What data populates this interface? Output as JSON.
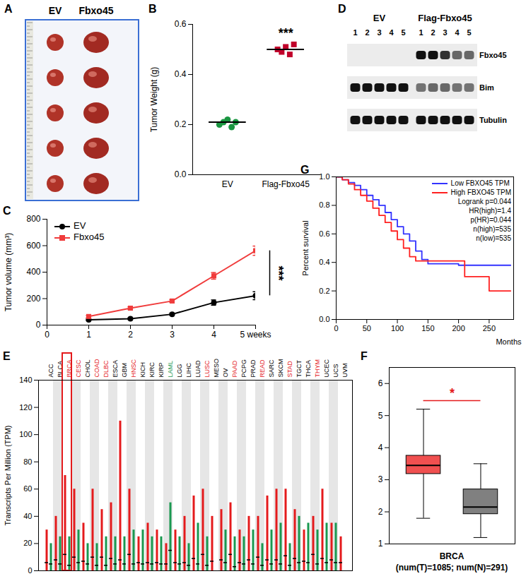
{
  "chart_data": [
    {
      "panel": "A",
      "type": "image",
      "labels": [
        "EV",
        "Fbxo45"
      ]
    },
    {
      "panel": "B",
      "type": "strip",
      "y_label": "Tumor Weight (g)",
      "ylim": [
        0,
        0.6
      ],
      "yticks": [
        {
          "value": 0,
          "label": "0.0"
        },
        0.2,
        0.4,
        0.6
      ],
      "series": [
        {
          "name": "EV",
          "color": "#1a9641",
          "marker": "circle",
          "values": [
            0.2,
            0.21,
            0.22,
            0.19,
            0.21
          ],
          "mean": 0.21
        },
        {
          "name": "Flag-Fbxo45",
          "color": "#c0002a",
          "marker": "square",
          "values": [
            0.5,
            0.49,
            0.51,
            0.48,
            0.52
          ],
          "mean": 0.5
        }
      ],
      "annotation": "***"
    },
    {
      "panel": "D",
      "type": "blot",
      "groups": [
        {
          "name": "EV",
          "lanes": [
            "1",
            "2",
            "3",
            "4",
            "5"
          ]
        },
        {
          "name": "Flag-Fbxo45",
          "lanes": [
            "1",
            "2",
            "3",
            "4",
            "5"
          ]
        }
      ],
      "rows": [
        {
          "name": "Fbxo45",
          "intensity": [
            0,
            0,
            0,
            0,
            0,
            1,
            1,
            0.85,
            0.6,
            0.6
          ]
        },
        {
          "name": "Bim",
          "intensity": [
            1,
            1,
            1,
            1,
            1,
            0.55,
            0.6,
            0.6,
            0.55,
            0.55
          ]
        },
        {
          "name": "Tubulin",
          "intensity": [
            1,
            1,
            1,
            1,
            1,
            1,
            1,
            1,
            1,
            1
          ]
        }
      ]
    },
    {
      "panel": "C",
      "type": "line",
      "y_label": "Tumor volume (mm³)",
      "x": [
        1,
        2,
        3,
        4,
        5
      ],
      "xlim": [
        0,
        5
      ],
      "xticks": [
        0,
        1,
        2,
        3,
        4,
        {
          "value": 5,
          "label": "5 weeks"
        }
      ],
      "ylim": [
        0,
        800
      ],
      "yticks": [
        0,
        200,
        400,
        600,
        800
      ],
      "series": [
        {
          "name": "EV",
          "color": "#000000",
          "marker": "circle",
          "values": [
            40,
            48,
            82,
            170,
            222
          ],
          "errors": [
            6,
            6,
            8,
            20,
            30
          ]
        },
        {
          "name": "Fbxo45",
          "color": "#f03c3c",
          "marker": "square",
          "values": [
            65,
            128,
            182,
            372,
            562
          ],
          "errors": [
            8,
            10,
            10,
            25,
            35
          ]
        }
      ],
      "legend": "top-left",
      "annotation": "***"
    },
    {
      "panel": "G",
      "type": "survival",
      "x_label": "Months",
      "y_label": "Percent survival",
      "xlim": [
        0,
        290
      ],
      "xticks": [
        0,
        50,
        100,
        150,
        200,
        250
      ],
      "ylim": [
        0,
        1
      ],
      "yticks": [
        {
          "value": 0,
          "label": "0.0"
        },
        0.2,
        0.4,
        0.6,
        0.8,
        {
          "value": 1,
          "label": "1.0"
        }
      ],
      "series": [
        {
          "name": "Low FBXO45 TPM",
          "color": "#3333ff",
          "x": [
            0,
            10,
            20,
            30,
            40,
            50,
            60,
            70,
            80,
            90,
            100,
            110,
            120,
            130,
            140,
            150,
            200,
            285
          ],
          "values": [
            1,
            0.98,
            0.96,
            0.94,
            0.91,
            0.87,
            0.84,
            0.8,
            0.75,
            0.7,
            0.65,
            0.6,
            0.55,
            0.48,
            0.42,
            0.39,
            0.38,
            0.38
          ]
        },
        {
          "name": "High FBXO45 TPM",
          "color": "#ff2020",
          "x": [
            0,
            10,
            20,
            30,
            40,
            50,
            60,
            70,
            80,
            90,
            100,
            110,
            120,
            130,
            210,
            250,
            285
          ],
          "values": [
            1,
            0.98,
            0.95,
            0.91,
            0.87,
            0.83,
            0.78,
            0.73,
            0.68,
            0.62,
            0.56,
            0.5,
            0.44,
            0.41,
            0.3,
            0.2,
            0.2
          ]
        }
      ],
      "annotations": [
        "Logrank p=0.044",
        "HR(high)=1.4",
        "p(HR)=0.044",
        "n(high)=535",
        "n(low)=535"
      ],
      "legend": "top-right"
    },
    {
      "panel": "E",
      "type": "dot",
      "y_label": "Transcripts Per Million (TPM)",
      "ylim": [
        0,
        140
      ],
      "yticks": [
        0,
        20,
        40,
        60,
        80,
        100,
        120,
        140
      ],
      "categories": [
        "ACC",
        "BLCA",
        "BRCA",
        "CESC",
        "CHOL",
        "COAD",
        "DLBC",
        "ESCA",
        "GBM",
        "HNSC",
        "KICH",
        "KIRC",
        "KIRP",
        "LAML",
        "LGG",
        "LIHC",
        "LUAD",
        "LUSC",
        "MESO",
        "OV",
        "PAAD",
        "PCPG",
        "PRAD",
        "READ",
        "SARC",
        "SKCM",
        "STAD",
        "TGCT",
        "THCA",
        "THYM",
        "UCEC",
        "UCS",
        "UVM"
      ],
      "colors": [
        "#000000",
        "#000000",
        "#e41a1c",
        "#e41a1c",
        "#000000",
        "#e41a1c",
        "#e41a1c",
        "#000000",
        "#000000",
        "#e41a1c",
        "#000000",
        "#000000",
        "#000000",
        "#1a9850",
        "#000000",
        "#000000",
        "#000000",
        "#e41a1c",
        "#000000",
        "#000000",
        "#e41a1c",
        "#000000",
        "#000000",
        "#e41a1c",
        "#000000",
        "#000000",
        "#e41a1c",
        "#000000",
        "#000000",
        "#e41a1c",
        "#000000",
        "#000000",
        "#000000"
      ],
      "tumor": {
        "color": "#e41a1c",
        "median": [
          6,
          8,
          12,
          10,
          7,
          10,
          10,
          9,
          8,
          12,
          6,
          6,
          6,
          5,
          6,
          6,
          9,
          12,
          7,
          8,
          12,
          6,
          8,
          10,
          8,
          8,
          11,
          9,
          7,
          12,
          9,
          8,
          6
        ],
        "max": [
          30,
          40,
          70,
          60,
          35,
          60,
          45,
          50,
          110,
          60,
          25,
          35,
          30,
          20,
          30,
          40,
          55,
          60,
          40,
          45,
          50,
          30,
          40,
          40,
          55,
          60,
          60,
          45,
          30,
          40,
          60,
          35,
          25
        ]
      },
      "normal": {
        "color": "#1a9850",
        "median": [
          5,
          5,
          4,
          6,
          5,
          4,
          4,
          5,
          5,
          5,
          5,
          5,
          5,
          15,
          5,
          4,
          5,
          4,
          null,
          6,
          3,
          5,
          5,
          4,
          5,
          5,
          4,
          6,
          6,
          5,
          6,
          6,
          null
        ],
        "max": [
          20,
          25,
          25,
          30,
          20,
          20,
          25,
          25,
          25,
          30,
          30,
          25,
          25,
          50,
          25,
          20,
          35,
          25,
          null,
          30,
          25,
          25,
          30,
          20,
          30,
          35,
          20,
          40,
          35,
          30,
          35,
          35,
          null
        ]
      },
      "highlight": "BRCA"
    },
    {
      "panel": "F",
      "type": "box",
      "title": "BRCA",
      "subtitle": "(num(T)=1085; num(N)=291)",
      "ylim": [
        1,
        6.5
      ],
      "yticks": [
        1,
        2,
        3,
        4,
        5,
        6
      ],
      "boxes": [
        {
          "color": "#f05050",
          "whisker_low": 1.8,
          "q1": 3.18,
          "median": 3.45,
          "q3": 3.75,
          "whisker_high": 5.2
        },
        {
          "color": "#808080",
          "whisker_low": 1.2,
          "q1": 1.93,
          "median": 2.15,
          "q3": 2.7,
          "whisker_high": 3.5
        }
      ],
      "annotation": "*",
      "color": "#e41a1c"
    }
  ]
}
